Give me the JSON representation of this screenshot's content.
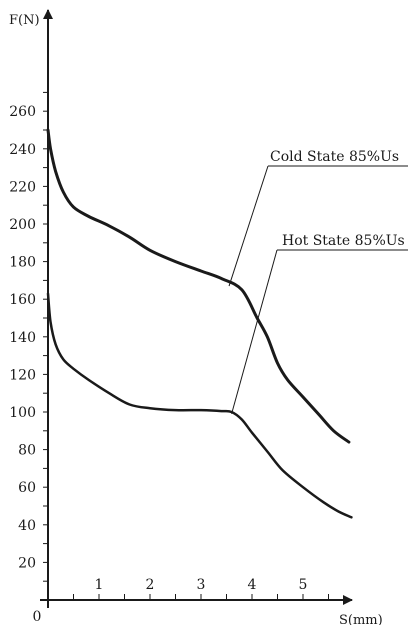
{
  "chart_data": {
    "type": "line",
    "xlabel": "S(mm)",
    "ylabel": "F(N)",
    "xlim": [
      0,
      6
    ],
    "ylim": [
      0,
      270
    ],
    "x_ticks": [
      0,
      1,
      2,
      3,
      4,
      5
    ],
    "y_ticks": [
      20,
      40,
      60,
      80,
      100,
      120,
      140,
      160,
      180,
      200,
      220,
      240,
      260
    ],
    "origin_label": "0",
    "grid": false,
    "line_color": "#1a1a1a",
    "series": [
      {
        "name": "Cold State 85%Us",
        "points": [
          [
            0,
            250
          ],
          [
            0.05,
            240
          ],
          [
            0.15,
            228
          ],
          [
            0.3,
            217
          ],
          [
            0.5,
            209
          ],
          [
            0.8,
            204
          ],
          [
            1.2,
            199
          ],
          [
            1.6,
            193
          ],
          [
            2.0,
            186
          ],
          [
            2.5,
            180
          ],
          [
            3.0,
            175
          ],
          [
            3.4,
            171
          ],
          [
            3.8,
            165
          ],
          [
            4.1,
            150
          ],
          [
            4.3,
            140
          ],
          [
            4.5,
            126
          ],
          [
            4.7,
            117
          ],
          [
            5.0,
            108
          ],
          [
            5.3,
            99
          ],
          [
            5.6,
            90
          ],
          [
            5.9,
            84
          ]
        ],
        "label_anchor": [
          3.55,
          167
        ]
      },
      {
        "name": "Hot State 85%Us",
        "points": [
          [
            0,
            163
          ],
          [
            0.05,
            148
          ],
          [
            0.15,
            136
          ],
          [
            0.3,
            128
          ],
          [
            0.5,
            123
          ],
          [
            0.8,
            117
          ],
          [
            1.2,
            110
          ],
          [
            1.6,
            104
          ],
          [
            2.0,
            102
          ],
          [
            2.5,
            101
          ],
          [
            3.0,
            101
          ],
          [
            3.4,
            100.5
          ],
          [
            3.6,
            100
          ],
          [
            3.8,
            96
          ],
          [
            4.0,
            89
          ],
          [
            4.3,
            79
          ],
          [
            4.6,
            69
          ],
          [
            5.0,
            60
          ],
          [
            5.4,
            52
          ],
          [
            5.7,
            47
          ],
          [
            5.95,
            44
          ]
        ],
        "label_anchor": [
          3.6,
          99
        ]
      }
    ]
  }
}
